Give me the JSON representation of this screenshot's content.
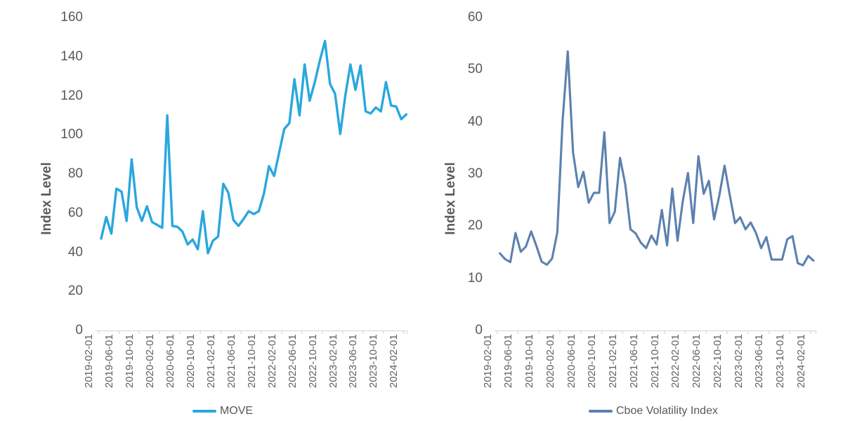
{
  "page": {
    "background": "#ffffff",
    "text_color": "#595959",
    "axis_color": "#d9d9d9"
  },
  "chart_data": [
    {
      "type": "line",
      "title": "",
      "ylabel": "Index Level",
      "legend": "MOVE",
      "line_color": "#2aa7de",
      "ylim": [
        0,
        160
      ],
      "yticks": [
        0,
        20,
        40,
        60,
        80,
        100,
        120,
        140,
        160
      ],
      "grid": false,
      "legend_position": "bottom",
      "x_tick_labels": [
        "2019-02-01",
        "2019-06-01",
        "2019-10-01",
        "2020-02-01",
        "2020-06-01",
        "2020-10-01",
        "2021-02-01",
        "2021-06-01",
        "2021-10-01",
        "2022-02-01",
        "2022-06-01",
        "2022-10-01",
        "2023-02-01",
        "2023-06-01",
        "2023-10-01",
        "2024-02-01"
      ],
      "categories": [
        "2019-02-01",
        "2019-03-01",
        "2019-04-01",
        "2019-05-01",
        "2019-06-01",
        "2019-07-01",
        "2019-08-01",
        "2019-09-01",
        "2019-10-01",
        "2019-11-01",
        "2019-12-01",
        "2020-01-01",
        "2020-02-01",
        "2020-03-01",
        "2020-04-01",
        "2020-05-01",
        "2020-06-01",
        "2020-07-01",
        "2020-08-01",
        "2020-09-01",
        "2020-10-01",
        "2020-11-01",
        "2020-12-01",
        "2021-01-01",
        "2021-02-01",
        "2021-03-01",
        "2021-04-01",
        "2021-05-01",
        "2021-06-01",
        "2021-07-01",
        "2021-08-01",
        "2021-09-01",
        "2021-10-01",
        "2021-11-01",
        "2021-12-01",
        "2022-01-01",
        "2022-02-01",
        "2022-03-01",
        "2022-04-01",
        "2022-05-01",
        "2022-06-01",
        "2022-07-01",
        "2022-08-01",
        "2022-09-01",
        "2022-10-01",
        "2022-11-01",
        "2022-12-01",
        "2023-01-01",
        "2023-02-01",
        "2023-03-01",
        "2023-04-01",
        "2023-05-01",
        "2023-06-01",
        "2023-07-01",
        "2023-08-01",
        "2023-09-01",
        "2023-10-01",
        "2023-11-01",
        "2023-12-01",
        "2024-01-01",
        "2024-02-01"
      ],
      "values": [
        47,
        58,
        49.5,
        72.5,
        71,
        56,
        87.5,
        63,
        56,
        63.5,
        55.5,
        54,
        52.5,
        110,
        53.5,
        53,
        50.5,
        44,
        46.5,
        41.5,
        61,
        39.5,
        46,
        48,
        75,
        70.5,
        56.5,
        53.5,
        57,
        61,
        59.5,
        61,
        70,
        84,
        79,
        91,
        103,
        106,
        128.5,
        110,
        136,
        117.5,
        127,
        138,
        148,
        126,
        121,
        100.5,
        120,
        136,
        123,
        135.5,
        112,
        111,
        114,
        112,
        127,
        115,
        114.5,
        108,
        110.5
      ]
    },
    {
      "type": "line",
      "title": "",
      "ylabel": "Index Level",
      "legend": "Cboe Volatility Index",
      "line_color": "#5c81af",
      "ylim": [
        0,
        60
      ],
      "yticks": [
        0,
        10,
        20,
        30,
        40,
        50,
        60
      ],
      "grid": false,
      "legend_position": "bottom",
      "x_tick_labels": [
        "2019-02-01",
        "2019-06-01",
        "2019-10-01",
        "2020-02-01",
        "2020-06-01",
        "2020-10-01",
        "2021-02-01",
        "2021-06-01",
        "2021-10-01",
        "2022-02-01",
        "2022-06-01",
        "2022-10-01",
        "2023-02-01",
        "2023-06-01",
        "2023-10-01",
        "2024-02-01"
      ],
      "categories": [
        "2019-02-01",
        "2019-03-01",
        "2019-04-01",
        "2019-05-01",
        "2019-06-01",
        "2019-07-01",
        "2019-08-01",
        "2019-09-01",
        "2019-10-01",
        "2019-11-01",
        "2019-12-01",
        "2020-01-01",
        "2020-02-01",
        "2020-03-01",
        "2020-04-01",
        "2020-05-01",
        "2020-06-01",
        "2020-07-01",
        "2020-08-01",
        "2020-09-01",
        "2020-10-01",
        "2020-11-01",
        "2020-12-01",
        "2021-01-01",
        "2021-02-01",
        "2021-03-01",
        "2021-04-01",
        "2021-05-01",
        "2021-06-01",
        "2021-07-01",
        "2021-08-01",
        "2021-09-01",
        "2021-10-01",
        "2021-11-01",
        "2021-12-01",
        "2022-01-01",
        "2022-02-01",
        "2022-03-01",
        "2022-04-01",
        "2022-05-01",
        "2022-06-01",
        "2022-07-01",
        "2022-08-01",
        "2022-09-01",
        "2022-10-01",
        "2022-11-01",
        "2022-12-01",
        "2023-01-01",
        "2023-02-01",
        "2023-03-01",
        "2023-04-01",
        "2023-05-01",
        "2023-06-01",
        "2023-07-01",
        "2023-08-01",
        "2023-09-01",
        "2023-10-01",
        "2023-11-01",
        "2023-12-01",
        "2024-01-01",
        "2024-02-01"
      ],
      "values": [
        14.8,
        13.7,
        13.1,
        18.7,
        15.1,
        16.1,
        19,
        16.2,
        13.2,
        12.6,
        13.8,
        18.8,
        40.1,
        53.5,
        34.2,
        27.5,
        30.4,
        24.5,
        26.4,
        26.4,
        38,
        20.6,
        22.8,
        33.1,
        28,
        19.4,
        18.6,
        16.8,
        15.8,
        18.2,
        16.5,
        23.1,
        16.3,
        27.2,
        17.2,
        24.8,
        30.2,
        20.6,
        33.4,
        26.2,
        28.7,
        21.3,
        25.9,
        31.6,
        25.9,
        20.6,
        21.7,
        19.4,
        20.7,
        18.7,
        15.8,
        17.9,
        13.6,
        13.6,
        13.6,
        17.5,
        18.1,
        12.9,
        12.5,
        14.3,
        13.4
      ]
    }
  ]
}
